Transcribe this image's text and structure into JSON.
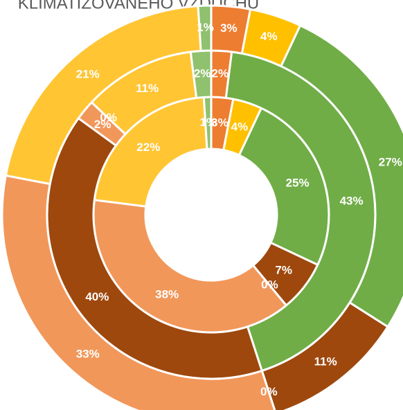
{
  "chart_data": {
    "type": "multi-donut",
    "title": "KLIMATIZOVANÉHO VZDUCHU",
    "series": [
      {
        "colors": [
          "#ed7d31",
          "#ffc000",
          "#70ad47",
          "#9e480e",
          "#9e480e",
          "#f1975a",
          "#ffc533",
          "#8fc16e"
        ],
        "values": [
          3,
          4,
          25,
          7,
          0,
          38,
          22,
          1
        ],
        "value_labels": [
          "3%",
          "4%",
          "25%",
          "7%",
          "0%",
          "38%",
          "22%",
          "1%"
        ]
      },
      {
        "colors": [
          "#ed7d31",
          "#70ad47",
          "#9e480e",
          "#f1975a",
          "#9e480e",
          "#ffc533",
          "#8fc16e"
        ],
        "values": [
          2,
          43,
          40,
          2,
          0,
          11,
          2
        ],
        "value_labels": [
          "2%",
          "43%",
          "40%",
          "2%",
          "0%",
          "11%",
          "2%"
        ]
      },
      {
        "colors": [
          "#ed7d31",
          "#ffc000",
          "#70ad47",
          "#9e480e",
          "#9e480e",
          "#f1975a",
          "#ffc533",
          "#8fc16e"
        ],
        "values": [
          3,
          4,
          27,
          11,
          0,
          33,
          21,
          1
        ],
        "value_labels": [
          "3%",
          "4%",
          "27%",
          "11%",
          "0%",
          "33%",
          "21%",
          "1%"
        ]
      }
    ]
  }
}
